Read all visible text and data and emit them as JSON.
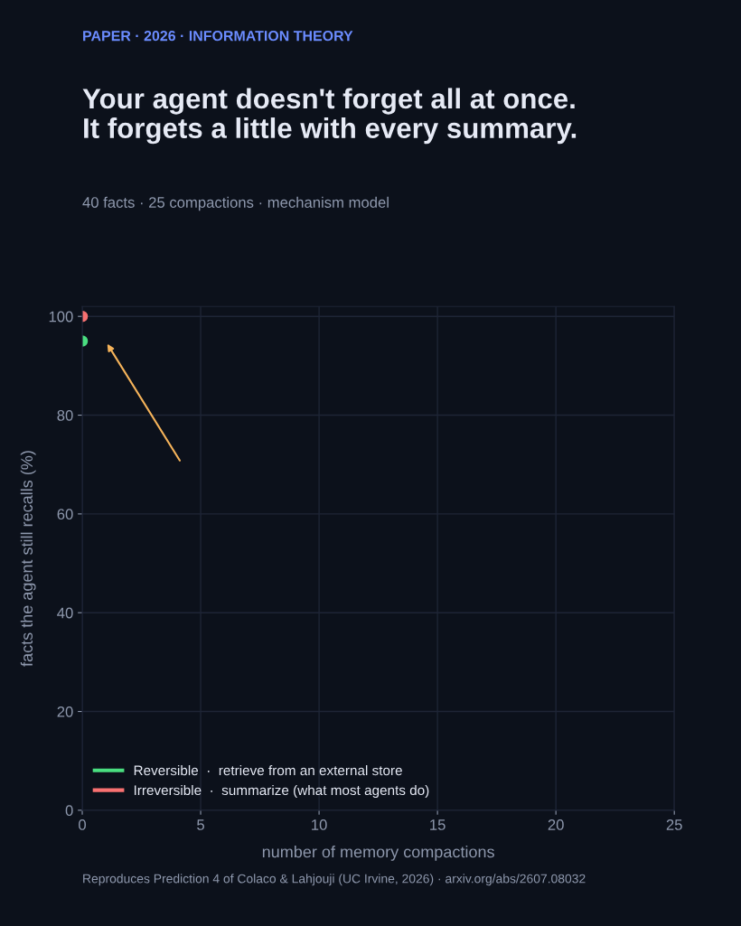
{
  "chart_data": {
    "type": "line",
    "title": "Your agent doesn't forget all at once.\nIt forgets a little with every summary.",
    "subtitle": "40 facts · 25 compactions · mechanism model",
    "annotations": [
      "PAPER · 2026 · INFORMATION THEORY",
      "Reproduces Prediction 4 of Colaco & Lahjouji (UC Irvine, 2026) · arxiv.org/abs/2607.08032"
    ],
    "xlabel": "number of memory compactions",
    "ylabel": "facts the agent still recalls (%)",
    "x": [
      0
    ],
    "series": [
      {
        "name": "Reversible  ·  retrieve from an external store",
        "color": "#4ade80",
        "values": [
          95
        ]
      },
      {
        "name": "Irreversible  ·  summarize (what most agents do)",
        "color": "#f87171",
        "values": [
          100
        ]
      }
    ],
    "xlim": [
      0,
      25
    ],
    "xticks": [
      0,
      5,
      10,
      15,
      20,
      25
    ],
    "ylim": [
      0,
      102
    ],
    "yticks": [
      0,
      20,
      40,
      60,
      80,
      100
    ],
    "grid": true,
    "legend": "bottom left",
    "marker": "circle",
    "line_style": "solid"
  }
}
